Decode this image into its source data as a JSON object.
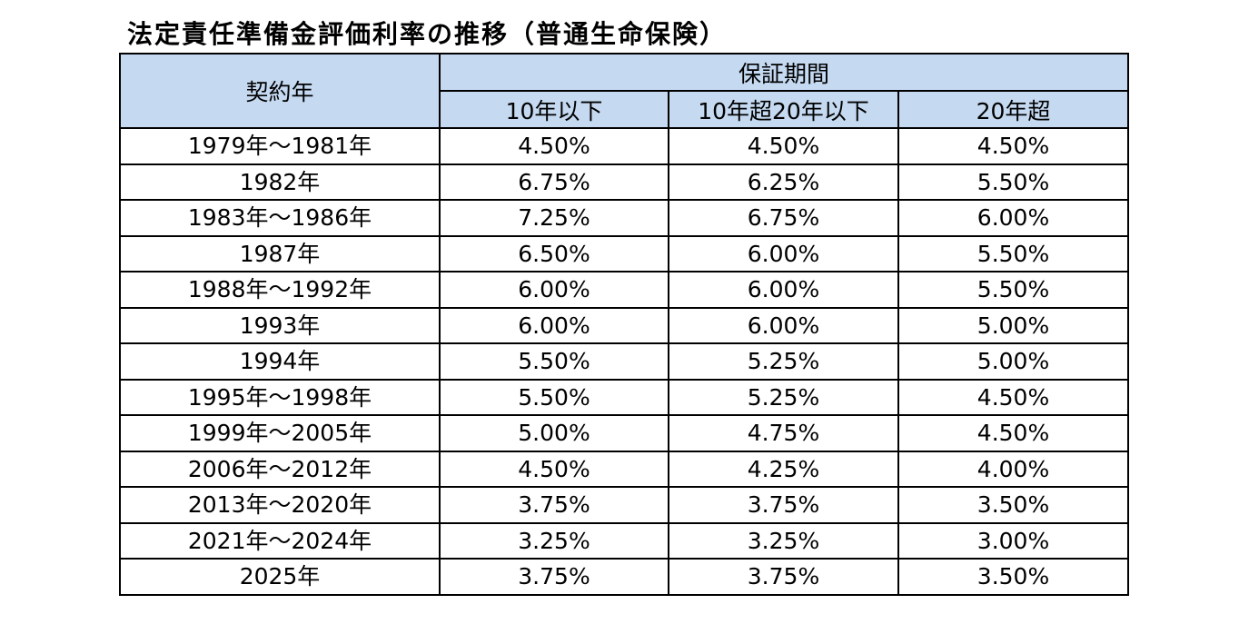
{
  "title": "法定責任準備金評価利率の推移（普通生命保険）",
  "table": {
    "year_header": "契約年",
    "period_header": "保証期間",
    "columns": [
      "10年以下",
      "10年超20年以下",
      "20年超"
    ],
    "rows": [
      {
        "year": "1979年～1981年",
        "values": [
          "4.50%",
          "4.50%",
          "4.50%"
        ]
      },
      {
        "year": "1982年",
        "values": [
          "6.75%",
          "6.25%",
          "5.50%"
        ]
      },
      {
        "year": "1983年～1986年",
        "values": [
          "7.25%",
          "6.75%",
          "6.00%"
        ]
      },
      {
        "year": "1987年",
        "values": [
          "6.50%",
          "6.00%",
          "5.50%"
        ]
      },
      {
        "year": "1988年～1992年",
        "values": [
          "6.00%",
          "6.00%",
          "5.50%"
        ]
      },
      {
        "year": "1993年",
        "values": [
          "6.00%",
          "6.00%",
          "5.00%"
        ]
      },
      {
        "year": "1994年",
        "values": [
          "5.50%",
          "5.25%",
          "5.00%"
        ]
      },
      {
        "year": "1995年～1998年",
        "values": [
          "5.50%",
          "5.25%",
          "4.50%"
        ]
      },
      {
        "year": "1999年～2005年",
        "values": [
          "5.00%",
          "4.75%",
          "4.50%"
        ]
      },
      {
        "year": "2006年～2012年",
        "values": [
          "4.50%",
          "4.25%",
          "4.00%"
        ]
      },
      {
        "year": "2013年～2020年",
        "values": [
          "3.75%",
          "3.75%",
          "3.50%"
        ]
      },
      {
        "year": "2021年～2024年",
        "values": [
          "3.25%",
          "3.25%",
          "3.00%"
        ]
      },
      {
        "year": "2025年",
        "values": [
          "3.75%",
          "3.75%",
          "3.50%"
        ]
      }
    ]
  },
  "colors": {
    "header_background": "#c5d9f1",
    "border": "#000000"
  }
}
